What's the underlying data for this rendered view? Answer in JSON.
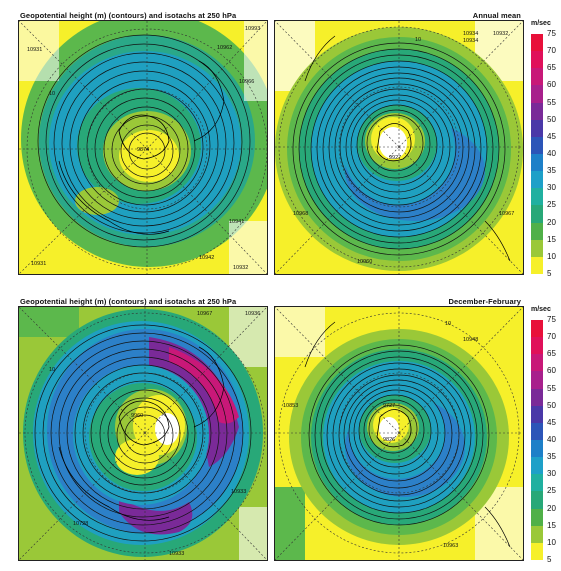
{
  "rows": [
    {
      "title": "Geopotential height (m) (contours) and isotachs at 250 hPa",
      "season": "Annual mean",
      "left_labels": [
        "10931",
        "10962",
        "10993",
        "10966",
        "10941",
        "10942",
        "10931",
        "10932",
        "9874",
        "10"
      ],
      "right_labels": [
        "10934",
        "10934",
        "10932",
        "10968",
        "10967",
        "10960",
        "9927",
        "10"
      ]
    },
    {
      "title": "Geopotential height (m) (contours) and isotachs at 250 hPa",
      "season": "December-February",
      "left_labels": [
        "10967",
        "10936",
        "10933",
        "10933",
        "10728",
        "9960",
        "10"
      ],
      "right_labels": [
        "10853",
        "10948",
        "10963",
        "9727",
        "9826",
        "10"
      ]
    }
  ],
  "colorbar": {
    "unit": "m/sec",
    "ticks": [
      "75",
      "70",
      "65",
      "60",
      "55",
      "50",
      "45",
      "40",
      "35",
      "30",
      "25",
      "20",
      "15",
      "10",
      "5"
    ],
    "colors": [
      "#e8103a",
      "#e0105a",
      "#c81878",
      "#a8208c",
      "#7a2a98",
      "#4a38a8",
      "#2c55b8",
      "#1e80c8",
      "#1ea0c8",
      "#20b0a0",
      "#28a878",
      "#50b048",
      "#9ac838",
      "#f6f02a"
    ]
  }
}
